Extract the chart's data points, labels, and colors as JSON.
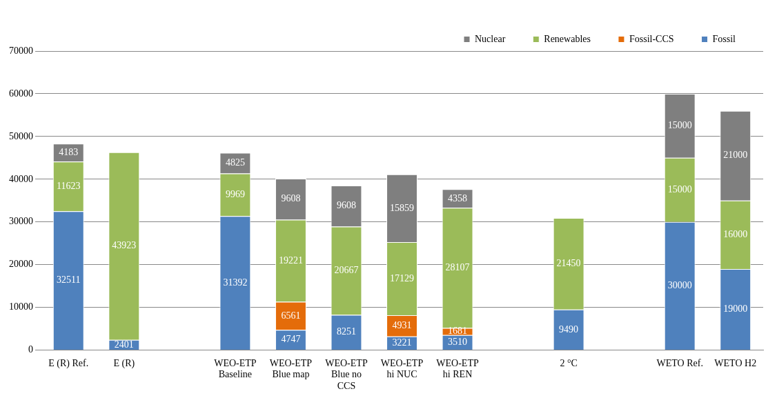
{
  "chart_data": {
    "type": "bar",
    "stacked": true,
    "categories": [
      "E (R) Ref.",
      "E (R)",
      null,
      "WEO-ETP\nBaseline",
      "WEO-ETP\nBlue map",
      "WEO-ETP\nBlue no\nCCS",
      "WEO-ETP\nhi NUC",
      "WEO-ETP\nhi REN",
      null,
      "2 °C",
      null,
      "WETO Ref.",
      "WETO H2"
    ],
    "series": [
      {
        "name": "Fossil",
        "color": "#4f81bd",
        "values": [
          32511,
          2401,
          null,
          31392,
          4747,
          8251,
          3221,
          3510,
          null,
          9490,
          null,
          30000,
          19000
        ]
      },
      {
        "name": "Fossil-CCS",
        "color": "#e46c0a",
        "values": [
          null,
          null,
          null,
          null,
          6561,
          null,
          4931,
          1681,
          null,
          null,
          null,
          null,
          null
        ]
      },
      {
        "name": "Renewables",
        "color": "#9bbb59",
        "values": [
          11623,
          43923,
          null,
          9969,
          19221,
          20667,
          17129,
          28107,
          null,
          21450,
          null,
          15000,
          16000
        ]
      },
      {
        "name": "Nuclear",
        "color": "#7f7f7f",
        "values": [
          4183,
          null,
          null,
          4825,
          9608,
          9608,
          15859,
          4358,
          null,
          null,
          null,
          15000,
          21000
        ]
      }
    ],
    "ylim": [
      0,
      70000
    ],
    "yticks": [
      0,
      10000,
      20000,
      30000,
      40000,
      50000,
      60000,
      70000
    ],
    "grid": "y",
    "legend": "top right",
    "data_labels": true
  }
}
